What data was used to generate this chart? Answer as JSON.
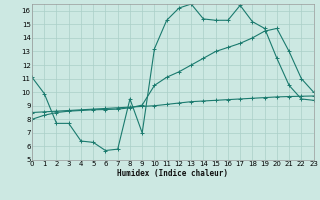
{
  "xlabel": "Humidex (Indice chaleur)",
  "xlim": [
    0,
    23
  ],
  "ylim": [
    5,
    16.5
  ],
  "xticks": [
    0,
    1,
    2,
    3,
    4,
    5,
    6,
    7,
    8,
    9,
    10,
    11,
    12,
    13,
    14,
    15,
    16,
    17,
    18,
    19,
    20,
    21,
    22,
    23
  ],
  "yticks": [
    5,
    6,
    7,
    8,
    9,
    10,
    11,
    12,
    13,
    14,
    15,
    16
  ],
  "bg_color": "#cce8e2",
  "line_color": "#1a7a6e",
  "grid_color": "#aacfc8",
  "s1_x": [
    0,
    1,
    2,
    3,
    4,
    5,
    6,
    7,
    8,
    9,
    10,
    11,
    12,
    13,
    14,
    15,
    16,
    17,
    18,
    19,
    20,
    21,
    22,
    23
  ],
  "s1_y": [
    11.1,
    9.9,
    7.7,
    7.7,
    6.4,
    6.3,
    5.7,
    5.8,
    9.5,
    7.0,
    13.2,
    15.3,
    16.2,
    16.5,
    15.4,
    15.3,
    15.3,
    16.4,
    15.2,
    14.7,
    12.5,
    10.5,
    9.5,
    9.4
  ],
  "s2_x": [
    0,
    1,
    2,
    3,
    4,
    5,
    6,
    7,
    8,
    9,
    10,
    11,
    12,
    13,
    14,
    15,
    16,
    17,
    18,
    19,
    20,
    21,
    22,
    23
  ],
  "s2_y": [
    8.5,
    8.55,
    8.6,
    8.65,
    8.7,
    8.75,
    8.8,
    8.85,
    8.9,
    8.95,
    9.0,
    9.1,
    9.2,
    9.3,
    9.35,
    9.4,
    9.45,
    9.5,
    9.55,
    9.6,
    9.65,
    9.68,
    9.7,
    9.72
  ],
  "s3_x": [
    0,
    1,
    2,
    3,
    4,
    5,
    6,
    7,
    8,
    9,
    10,
    11,
    12,
    13,
    14,
    15,
    16,
    17,
    18,
    19,
    20,
    21,
    22,
    23
  ],
  "s3_y": [
    8.0,
    8.3,
    8.5,
    8.6,
    8.65,
    8.7,
    8.72,
    8.75,
    8.85,
    9.05,
    10.5,
    11.1,
    11.5,
    12.0,
    12.5,
    13.0,
    13.3,
    13.6,
    14.0,
    14.5,
    14.7,
    13.0,
    11.0,
    10.0
  ]
}
